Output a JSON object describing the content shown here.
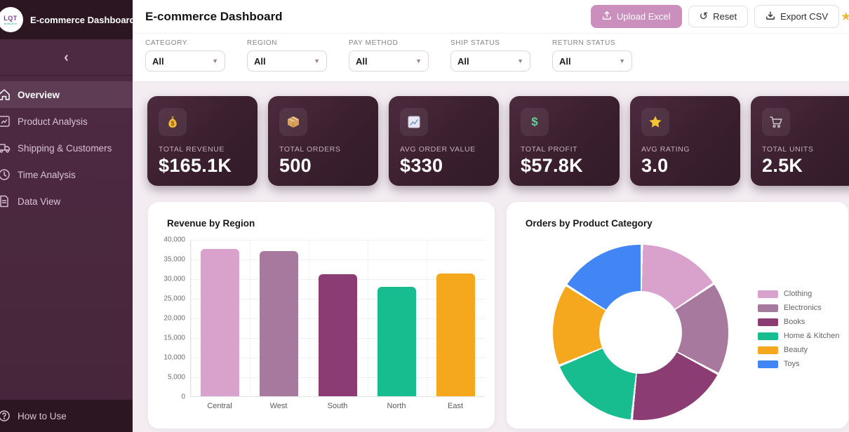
{
  "sidebar": {
    "logo_text": "LQT",
    "logo_subtext": "analytics",
    "title": "E-commerce Dashboard",
    "collapse_icon": "‹",
    "items": [
      {
        "label": "Overview",
        "icon": "home-icon",
        "active": true
      },
      {
        "label": "Product Analysis",
        "icon": "product-analysis-icon",
        "active": false
      },
      {
        "label": "Shipping & Customers",
        "icon": "truck-icon",
        "active": false
      },
      {
        "label": "Time Analysis",
        "icon": "clock-icon",
        "active": false
      },
      {
        "label": "Data View",
        "icon": "document-icon",
        "active": false
      }
    ],
    "footer_item": {
      "label": "How to Use",
      "icon": "question-icon"
    }
  },
  "header": {
    "title": "E-commerce Dashboard",
    "upload_label": "Upload Excel",
    "reset_label": "Reset",
    "export_label": "Export CSV"
  },
  "filters": [
    {
      "label": "CATEGORY",
      "value": "All"
    },
    {
      "label": "REGION",
      "value": "All"
    },
    {
      "label": "PAY METHOD",
      "value": "All"
    },
    {
      "label": "SHIP STATUS",
      "value": "All"
    },
    {
      "label": "RETURN STATUS",
      "value": "All"
    }
  ],
  "kpis": [
    {
      "icon": "money-bag-icon",
      "label": "TOTAL REVENUE",
      "value": "$165.1K"
    },
    {
      "icon": "package-icon",
      "label": "TOTAL ORDERS",
      "value": "500"
    },
    {
      "icon": "chart-increasing-icon",
      "label": "AVG ORDER VALUE",
      "value": "$330"
    },
    {
      "icon": "dollar-icon",
      "label": "TOTAL PROFIT",
      "value": "$57.8K"
    },
    {
      "icon": "star-icon",
      "label": "AVG RATING",
      "value": "3.0"
    },
    {
      "icon": "cart-icon",
      "label": "TOTAL UNITS",
      "value": "2.5K"
    }
  ],
  "chart_data": [
    {
      "type": "bar",
      "title": "Revenue by Region",
      "categories": [
        "Central",
        "West",
        "South",
        "North",
        "East"
      ],
      "values": [
        37500,
        37000,
        31000,
        27800,
        31200
      ],
      "colors": [
        "#d9a2cc",
        "#a7799f",
        "#8b3c72",
        "#17bd8e",
        "#f5a81e"
      ],
      "xlabel": "",
      "ylabel": "",
      "ylim": [
        0,
        40000
      ],
      "ytick_labels": [
        "40,000",
        "35,000",
        "30,000",
        "25,000",
        "20,000",
        "15,000",
        "10,000",
        "5,000",
        "0"
      ],
      "grid": true,
      "legend_position": "none"
    },
    {
      "type": "pie",
      "title": "Orders by Product Category",
      "categories": [
        "Clothing",
        "Electronics",
        "Books",
        "Home & Kitchen",
        "Beauty",
        "Toys"
      ],
      "values": [
        77,
        86,
        94,
        86,
        76,
        81
      ],
      "colors": [
        "#d9a2cc",
        "#a7799f",
        "#8b3c72",
        "#17bd8e",
        "#f5a81e",
        "#4285f4"
      ],
      "donut": true,
      "legend_position": "right"
    }
  ],
  "colors": {
    "sidebar_bg": "#4f2b43",
    "sidebar_dark": "#2c1621",
    "active_item": "#5e3c54",
    "accent_pink": "#ca8fbc",
    "card_bg": "#3a1f2e",
    "content_bg": "#f3edf2"
  }
}
